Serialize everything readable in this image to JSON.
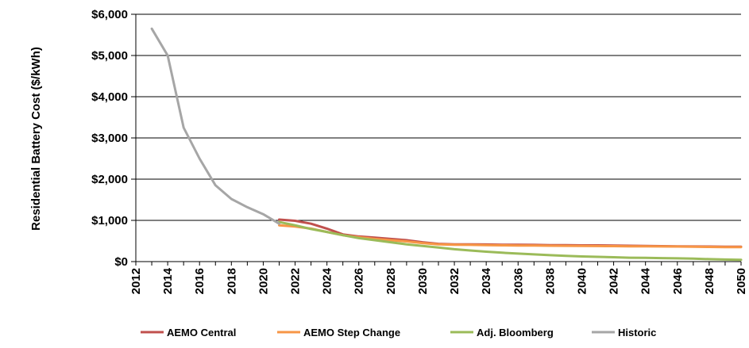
{
  "chart_data": {
    "type": "line",
    "title": "",
    "xlabel": "",
    "ylabel": "Residential Battery Cost ($/kWh)",
    "xlim": [
      2012,
      2050
    ],
    "ylim": [
      0,
      6000
    ],
    "x_ticks": [
      2012,
      2014,
      2016,
      2018,
      2020,
      2022,
      2024,
      2026,
      2028,
      2030,
      2032,
      2034,
      2036,
      2038,
      2040,
      2042,
      2044,
      2046,
      2048,
      2050
    ],
    "y_ticks": [
      0,
      1000,
      2000,
      3000,
      4000,
      5000,
      6000
    ],
    "y_tick_labels": [
      "$0",
      "$1,000",
      "$2,000",
      "$3,000",
      "$4,000",
      "$5,000",
      "$6,000"
    ],
    "grid": "horizontal",
    "legend_position": "bottom",
    "series": [
      {
        "name": "AEMO Central",
        "color": "#C0504D",
        "x": [
          2021,
          2022,
          2023,
          2024,
          2025,
          2026,
          2027,
          2028,
          2029,
          2030,
          2031,
          2032,
          2033,
          2034,
          2035,
          2036,
          2037,
          2038,
          2039,
          2040,
          2041,
          2042,
          2043,
          2044,
          2045,
          2046,
          2047,
          2048,
          2049,
          2050
        ],
        "values": [
          1020,
          990,
          920,
          800,
          660,
          610,
          580,
          550,
          520,
          470,
          430,
          420,
          420,
          415,
          410,
          410,
          405,
          400,
          400,
          395,
          395,
          390,
          385,
          380,
          375,
          370,
          368,
          365,
          362,
          360
        ]
      },
      {
        "name": "AEMO Step Change",
        "color": "#F79646",
        "x": [
          2021,
          2022,
          2023,
          2024,
          2025,
          2026,
          2027,
          2028,
          2029,
          2030,
          2031,
          2032,
          2033,
          2034,
          2035,
          2036,
          2037,
          2038,
          2039,
          2040,
          2041,
          2042,
          2043,
          2044,
          2045,
          2046,
          2047,
          2048,
          2049,
          2050
        ],
        "values": [
          880,
          850,
          800,
          720,
          640,
          590,
          550,
          520,
          490,
          450,
          420,
          410,
          405,
          400,
          395,
          390,
          388,
          385,
          382,
          380,
          377,
          375,
          372,
          370,
          368,
          365,
          360,
          355,
          352,
          350
        ]
      },
      {
        "name": "Adj. Bloomberg",
        "color": "#9BBB59",
        "x": [
          2021,
          2022,
          2023,
          2024,
          2025,
          2026,
          2027,
          2028,
          2029,
          2030,
          2031,
          2032,
          2033,
          2034,
          2035,
          2036,
          2037,
          2038,
          2039,
          2040,
          2041,
          2042,
          2043,
          2044,
          2045,
          2046,
          2047,
          2048,
          2049,
          2050
        ],
        "values": [
          960,
          880,
          790,
          720,
          640,
          570,
          520,
          470,
          420,
          380,
          340,
          300,
          270,
          240,
          215,
          195,
          175,
          155,
          140,
          125,
          115,
          105,
          95,
          90,
          85,
          78,
          72,
          60,
          50,
          45
        ]
      },
      {
        "name": "Historic",
        "color": "#A6A6A6",
        "x": [
          2013,
          2014,
          2015,
          2016,
          2017,
          2018,
          2019,
          2020,
          2021
        ],
        "values": [
          5650,
          5000,
          3250,
          2500,
          1850,
          1520,
          1320,
          1150,
          920
        ]
      }
    ]
  }
}
